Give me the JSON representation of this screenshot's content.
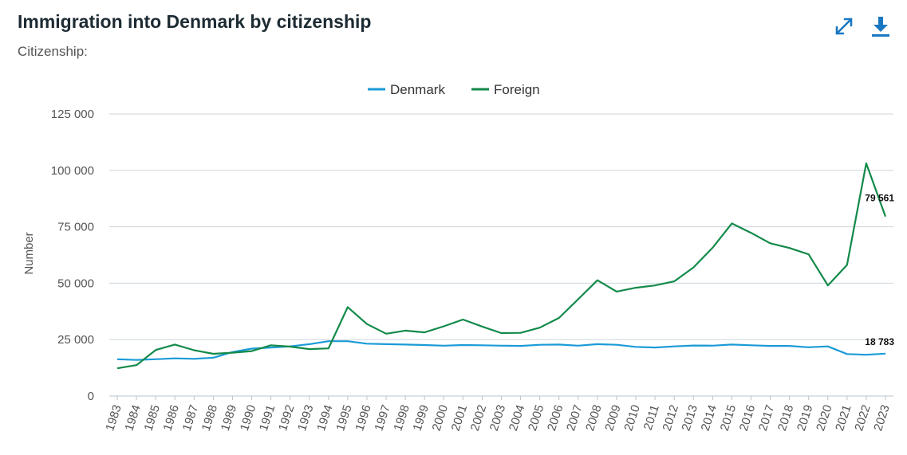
{
  "header": {
    "title": "Immigration into Denmark by citizenship",
    "subtitle": "Citizenship:"
  },
  "toolbar": {
    "expand_icon": "expand-arrows-icon",
    "download_icon": "download-icon",
    "icon_color": "#1a78c2"
  },
  "chart_data": {
    "type": "line",
    "title": "Immigration into Denmark by citizenship",
    "ylabel": "Number",
    "xlabel": "",
    "ylim": [
      0,
      125000
    ],
    "yticks": [
      0,
      25000,
      50000,
      75000,
      100000,
      125000
    ],
    "ytick_labels": [
      "0",
      "25 000",
      "50 000",
      "75 000",
      "100 000",
      "125 000"
    ],
    "grid": true,
    "legend_position": "top-center",
    "x": [
      "1983",
      "1984",
      "1985",
      "1986",
      "1987",
      "1988",
      "1989",
      "1990",
      "1991",
      "1992",
      "1993",
      "1994",
      "1995",
      "1996",
      "1997",
      "1998",
      "1999",
      "2000",
      "2001",
      "2002",
      "2003",
      "2004",
      "2005",
      "2006",
      "2007",
      "2008",
      "2009",
      "2010",
      "2011",
      "2012",
      "2013",
      "2014",
      "2015",
      "2016",
      "2017",
      "2018",
      "2019",
      "2020",
      "2021",
      "2022",
      "2023"
    ],
    "series": [
      {
        "name": "Denmark",
        "color": "#1a9bd7",
        "values": [
          16300,
          16000,
          16300,
          16700,
          16500,
          17000,
          19500,
          21000,
          21500,
          22000,
          23000,
          24300,
          24300,
          23200,
          23000,
          22800,
          22600,
          22300,
          22600,
          22500,
          22300,
          22200,
          22700,
          22800,
          22300,
          23000,
          22700,
          21800,
          21500,
          22000,
          22400,
          22300,
          22800,
          22500,
          22200,
          22200,
          21600,
          22000,
          18600,
          18300,
          18783
        ],
        "end_label": "18 783"
      },
      {
        "name": "Foreign",
        "color": "#138a4a",
        "values": [
          12300,
          13700,
          20400,
          22800,
          20300,
          18700,
          19200,
          19900,
          22500,
          21900,
          20800,
          21100,
          39400,
          31900,
          27600,
          29000,
          28200,
          30900,
          33900,
          30800,
          27900,
          28000,
          30300,
          34600,
          42900,
          51300,
          46300,
          48000,
          49000,
          50800,
          57000,
          65700,
          76500,
          72300,
          67700,
          65600,
          62800,
          49000,
          58100,
          103100,
          79561
        ],
        "end_label": "79 561"
      }
    ]
  }
}
